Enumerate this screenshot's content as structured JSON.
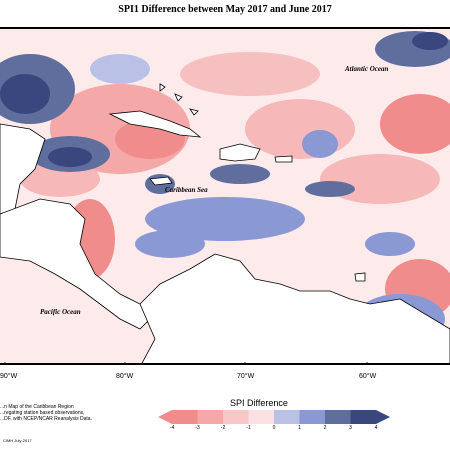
{
  "title": "SPI1 Difference between May 2017 and June 2017",
  "map": {
    "labels": {
      "atlantic": "Atlantic Ocean",
      "caribbean": "Caribbean Sea",
      "pacific": "Pacific Ocean"
    },
    "longitudes": [
      "90°W",
      "80°W",
      "70°W",
      "60°W"
    ]
  },
  "footnote": [
    "...n Map of the Caribbean Region",
    "...regating station based observations,",
    "...DF, with NCEP/NCAR Reanalysis Data."
  ],
  "credit": "CIMH July-2017",
  "legend": {
    "title": "SPI Difference",
    "ticks": [
      "-4",
      "-3",
      "-2",
      "-1",
      "0",
      "1",
      "2",
      "3",
      "4"
    ],
    "colors": {
      "neg4": "#f08c8c",
      "neg3": "#f4a8a8",
      "neg2": "#f8c6c6",
      "neg1": "#fbe1e1",
      "zero": "#ffffff",
      "pos1": "#b9c1e6",
      "pos2": "#8a98d4",
      "pos3": "#5f6e9c",
      "pos4": "#3a467e"
    }
  }
}
